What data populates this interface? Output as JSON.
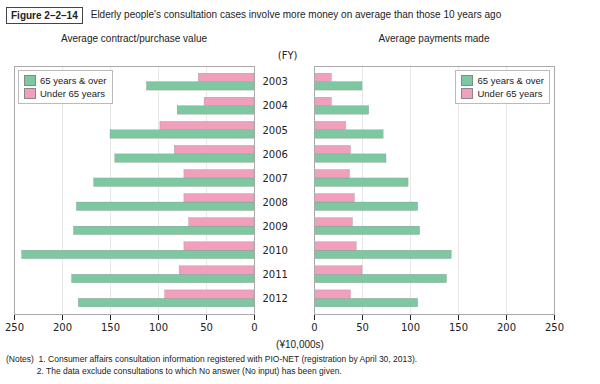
{
  "title": "Elderly people's consultation cases involve more money on average than those 10 years ago",
  "figure_label": "Figure 2–2–14",
  "xlabel": "(¥10,000s)",
  "notes": [
    "(Notes)  1. Consumer affairs consultation information registered with PIO-NET (registration by April 30, 2013).",
    "             2. The data exclude consultations to which No answer (No input) has been given."
  ],
  "chart_data": [
    {
      "type": "bar",
      "orientation": "horizontal",
      "title": "Average contract/purchase value",
      "ylabel": "(FY)",
      "categories": [
        "2003",
        "2004",
        "2005",
        "2006",
        "2007",
        "2008",
        "2009",
        "2010",
        "2011",
        "2012"
      ],
      "series": [
        {
          "name": "65 years & over",
          "color": "#7dc8a0",
          "values": [
            112,
            80,
            150,
            145,
            167,
            185,
            188,
            242,
            190,
            183
          ]
        },
        {
          "name": "Under 65 years",
          "color": "#f0a0bc",
          "values": [
            58,
            52,
            98,
            83,
            73,
            73,
            68,
            73,
            78,
            93
          ]
        }
      ],
      "xlim": [
        250,
        0
      ],
      "xticks": [
        0,
        50,
        100,
        150,
        200,
        250
      ],
      "grid": true,
      "legend": "upper left"
    },
    {
      "type": "bar",
      "orientation": "horizontal",
      "title": "Average payments made",
      "categories": [
        "2003",
        "2004",
        "2005",
        "2006",
        "2007",
        "2008",
        "2009",
        "2010",
        "2011",
        "2012"
      ],
      "series": [
        {
          "name": "65 years & over",
          "color": "#7dc8a0",
          "values": [
            50,
            57,
            72,
            75,
            98,
            108,
            110,
            143,
            138,
            108
          ]
        },
        {
          "name": "Under 65 years",
          "color": "#f0a0bc",
          "values": [
            18,
            18,
            33,
            38,
            37,
            42,
            40,
            44,
            50,
            38
          ]
        }
      ],
      "xlim": [
        0,
        250
      ],
      "xticks": [
        0,
        50,
        100,
        150,
        200,
        250
      ],
      "grid": true,
      "legend": "upper right",
      "tick_labels": "x"
    }
  ]
}
